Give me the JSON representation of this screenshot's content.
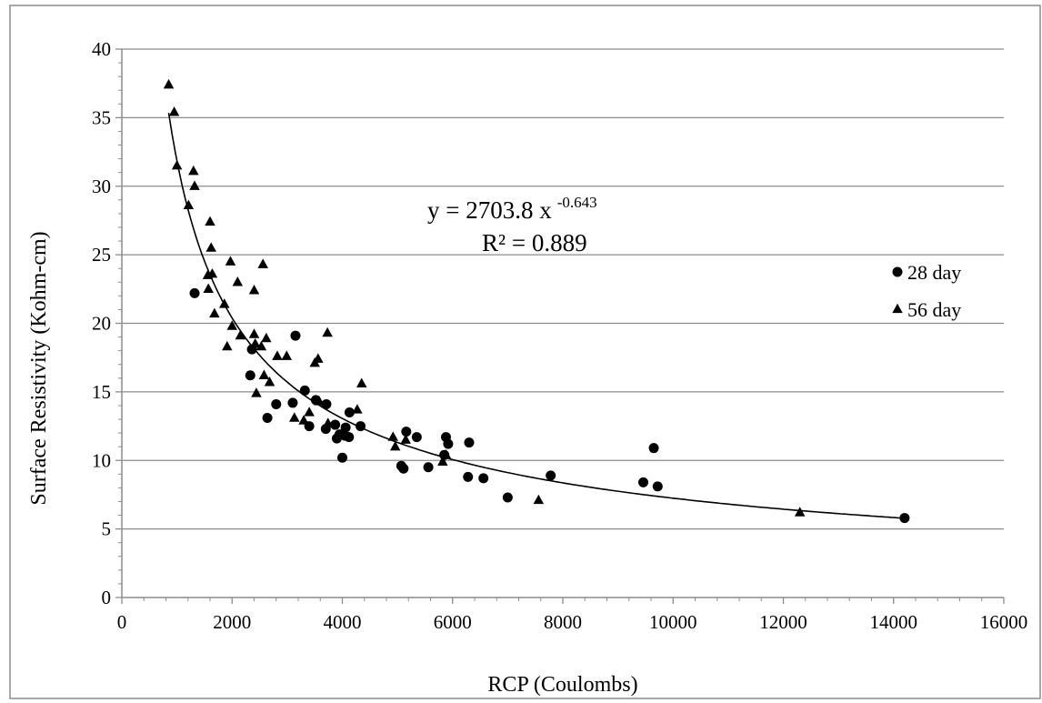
{
  "chart_data": {
    "type": "scatter",
    "xlabel": "RCP (Coulombs)",
    "ylabel": "Surface Resistivity (Kohm-cm)",
    "xlim": [
      0,
      16000
    ],
    "ylim": [
      0,
      40
    ],
    "xticks": [
      0,
      2000,
      4000,
      6000,
      8000,
      10000,
      12000,
      14000,
      16000
    ],
    "yticks": [
      0,
      5,
      10,
      15,
      20,
      25,
      30,
      35,
      40
    ],
    "grid": "horizontal major gridlines",
    "legend_position": "right",
    "series": [
      {
        "name": "28 day",
        "marker": "circle",
        "color": "#000000",
        "points": [
          [
            1320,
            22.2
          ],
          [
            2330,
            16.2
          ],
          [
            2360,
            18.1
          ],
          [
            2640,
            13.1
          ],
          [
            2800,
            14.1
          ],
          [
            3100,
            14.2
          ],
          [
            3150,
            19.1
          ],
          [
            3320,
            15.1
          ],
          [
            3400,
            12.5
          ],
          [
            3520,
            14.4
          ],
          [
            3700,
            12.3
          ],
          [
            3710,
            14.1
          ],
          [
            3870,
            12.6
          ],
          [
            3900,
            11.6
          ],
          [
            3950,
            11.9
          ],
          [
            4000,
            10.2
          ],
          [
            4050,
            11.8
          ],
          [
            4060,
            12.4
          ],
          [
            4120,
            11.7
          ],
          [
            4130,
            13.5
          ],
          [
            4330,
            12.5
          ],
          [
            5070,
            9.6
          ],
          [
            5110,
            9.4
          ],
          [
            5160,
            12.1
          ],
          [
            5350,
            11.7
          ],
          [
            5560,
            9.5
          ],
          [
            5850,
            10.4
          ],
          [
            5880,
            11.7
          ],
          [
            5920,
            11.2
          ],
          [
            6280,
            8.8
          ],
          [
            6300,
            11.3
          ],
          [
            6560,
            8.7
          ],
          [
            7000,
            7.3
          ],
          [
            7780,
            8.9
          ],
          [
            9460,
            8.4
          ],
          [
            9650,
            10.9
          ],
          [
            9720,
            8.1
          ],
          [
            14200,
            5.8
          ]
        ]
      },
      {
        "name": "56 day",
        "marker": "triangle",
        "color": "#000000",
        "points": [
          [
            850,
            37.4
          ],
          [
            950,
            35.4
          ],
          [
            1000,
            31.5
          ],
          [
            1210,
            28.6
          ],
          [
            1300,
            31.1
          ],
          [
            1320,
            30.0
          ],
          [
            1560,
            23.5
          ],
          [
            1570,
            22.5
          ],
          [
            1600,
            27.4
          ],
          [
            1620,
            25.5
          ],
          [
            1640,
            23.6
          ],
          [
            1680,
            20.7
          ],
          [
            1860,
            21.4
          ],
          [
            1910,
            18.3
          ],
          [
            1970,
            24.5
          ],
          [
            2000,
            19.8
          ],
          [
            2100,
            23.0
          ],
          [
            2150,
            19.1
          ],
          [
            2400,
            22.4
          ],
          [
            2400,
            19.2
          ],
          [
            2420,
            18.5
          ],
          [
            2440,
            14.9
          ],
          [
            2530,
            18.3
          ],
          [
            2560,
            24.3
          ],
          [
            2580,
            16.2
          ],
          [
            2620,
            18.9
          ],
          [
            2680,
            15.7
          ],
          [
            2820,
            17.6
          ],
          [
            2990,
            17.6
          ],
          [
            3130,
            13.1
          ],
          [
            3300,
            12.9
          ],
          [
            3400,
            13.5
          ],
          [
            3500,
            17.1
          ],
          [
            3560,
            17.4
          ],
          [
            3580,
            14.3
          ],
          [
            3730,
            19.3
          ],
          [
            3740,
            12.7
          ],
          [
            4270,
            13.7
          ],
          [
            4350,
            15.6
          ],
          [
            4920,
            11.7
          ],
          [
            4960,
            11.0
          ],
          [
            5150,
            11.5
          ],
          [
            5820,
            9.9
          ],
          [
            5880,
            10.4
          ],
          [
            7560,
            7.1
          ],
          [
            12300,
            6.2
          ]
        ]
      }
    ],
    "trendline": {
      "type": "power",
      "coefficient": 2703.8,
      "exponent": -0.643,
      "x_range": [
        850,
        14200
      ],
      "equation_label": "y = 2703.8 x",
      "exponent_label": "-0.643",
      "r2_label": "R² = 0.889"
    }
  }
}
